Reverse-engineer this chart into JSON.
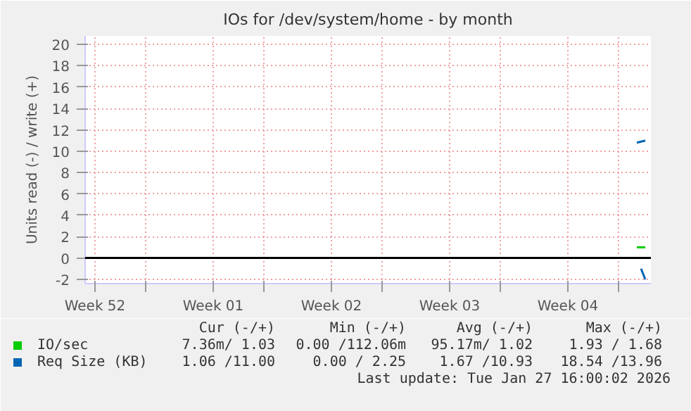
{
  "chart_data": {
    "type": "line",
    "title": "IOs for /dev/system/home - by month",
    "ylabel": "Units read (-) / write (+)",
    "xlim": [
      "2025-12-25T10:00",
      "2026-01-27T22:00"
    ],
    "ylim": [
      -2.4,
      20.8
    ],
    "xticks": [
      {
        "value": "2025-12-26",
        "label": "Week 52"
      },
      {
        "value": "2025-12-29",
        "label": null
      },
      {
        "value": "2026-01-02",
        "label": "Week 01"
      },
      {
        "value": "2026-01-05",
        "label": null
      },
      {
        "value": "2026-01-09",
        "label": "Week 02"
      },
      {
        "value": "2026-01-12",
        "label": null
      },
      {
        "value": "2026-01-16",
        "label": "Week 03"
      },
      {
        "value": "2026-01-19",
        "label": null
      },
      {
        "value": "2026-01-23",
        "label": "Week 04"
      },
      {
        "value": "2026-01-26",
        "label": null
      }
    ],
    "yticks": [
      -2,
      0,
      2,
      4,
      6,
      8,
      10,
      12,
      14,
      16,
      18,
      20
    ],
    "grid": true,
    "legend": "bottom",
    "series": [
      {
        "name": "IO/sec",
        "color": "#00cc00",
        "x": [
          "2026-01-27T02:00",
          "2026-01-27T14:00"
        ],
        "values": [
          1.0,
          1.0
        ]
      },
      {
        "name": "Req Size (KB)",
        "color": "#0066b3",
        "x": [
          "2026-01-27T02:00",
          "2026-01-27T14:00"
        ],
        "values": [
          10.8,
          11.0
        ]
      },
      {
        "color": "#0066b3",
        "x": [
          "2026-01-27T08:00",
          "2026-01-27T14:00"
        ],
        "values": [
          -1.0,
          -2.0
        ]
      }
    ],
    "ref_lines": [
      {
        "axis": "y",
        "value": 0,
        "color": "#000000"
      }
    ],
    "annotations": [
      "Cur (-/+)",
      "Min (-/+)",
      "Avg (-/+)",
      "Max (-/+)",
      "7.36m/ 1.03",
      "0.00 /112.06m",
      "95.17m/ 1.02",
      "1.93 / 1.68",
      "1.06 /11.00",
      "0.00 / 2.25",
      "1.67 /10.93",
      "18.54 /13.96",
      "Last update: Tue Jan 27 16:00:02 2026"
    ]
  }
}
